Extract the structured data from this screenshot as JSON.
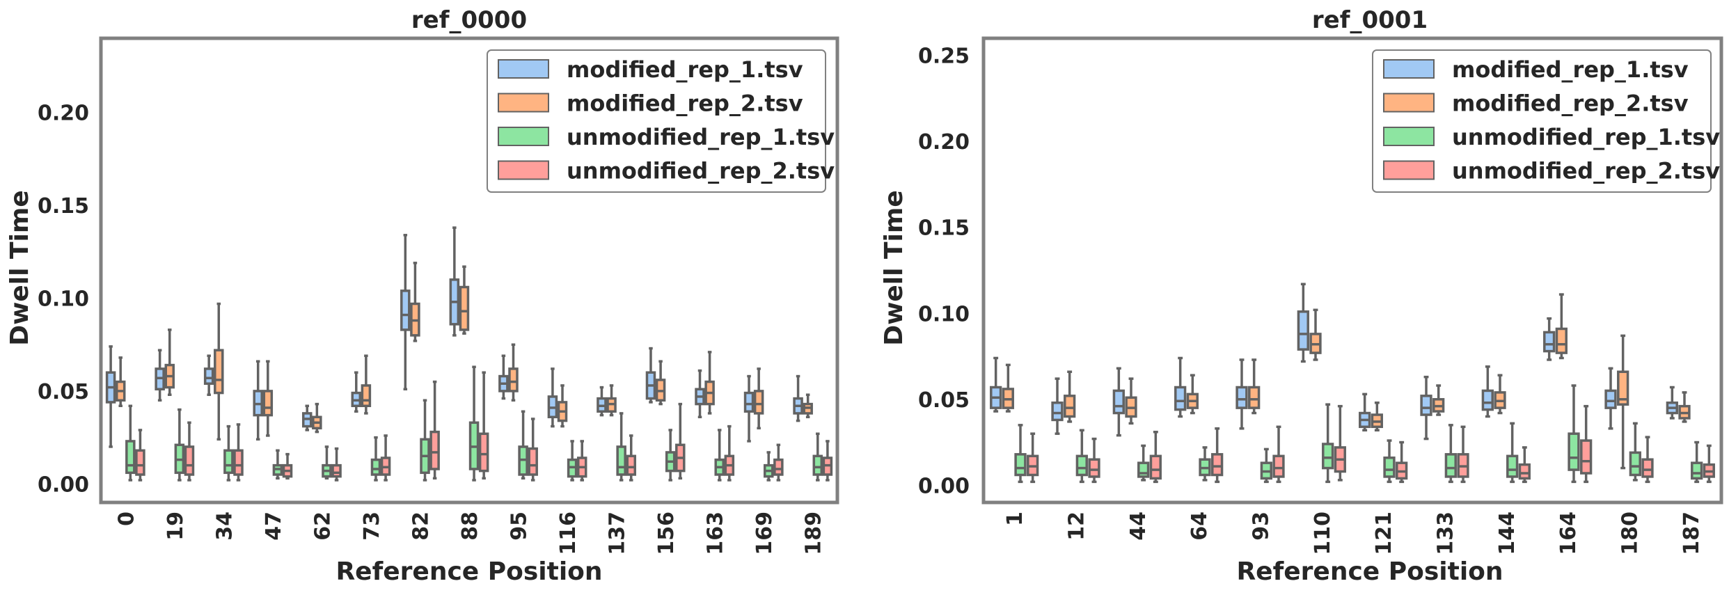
{
  "colors": {
    "modified_rep_1": "#a1c9f4",
    "modified_rep_2": "#ffb482",
    "unmodified_rep_1": "#8de5a1",
    "unmodified_rep_2": "#ff9f9b",
    "box_edge": "#626262",
    "frame": "#808080"
  },
  "chart_data": [
    {
      "type": "box",
      "title": "ref_0000",
      "xlabel": "Reference Position",
      "ylabel": "Dwell Time",
      "ylim": [
        -0.01,
        0.24
      ],
      "yticks": [
        0.0,
        0.05,
        0.1,
        0.15,
        0.2
      ],
      "ytick_labels": [
        "0.00",
        "0.05",
        "0.10",
        "0.15",
        "0.20"
      ],
      "grid": false,
      "legend_position": "top-right",
      "categories": [
        "0",
        "19",
        "34",
        "47",
        "62",
        "73",
        "82",
        "88",
        "95",
        "116",
        "137",
        "156",
        "163",
        "169",
        "189"
      ],
      "series": [
        {
          "name": "modified_rep_1.tsv",
          "color_key": "modified_rep_1",
          "stats": [
            [
              0.02,
              0.044,
              0.052,
              0.06,
              0.074
            ],
            [
              0.045,
              0.051,
              0.057,
              0.062,
              0.072
            ],
            [
              0.048,
              0.054,
              0.057,
              0.062,
              0.069
            ],
            [
              0.024,
              0.037,
              0.043,
              0.05,
              0.066
            ],
            [
              0.029,
              0.031,
              0.035,
              0.038,
              0.042
            ],
            [
              0.039,
              0.042,
              0.045,
              0.049,
              0.06
            ],
            [
              0.051,
              0.083,
              0.091,
              0.104,
              0.134
            ],
            [
              0.08,
              0.086,
              0.098,
              0.11,
              0.138
            ],
            [
              0.046,
              0.05,
              0.054,
              0.058,
              0.069
            ],
            [
              0.031,
              0.036,
              0.041,
              0.047,
              0.062
            ],
            [
              0.037,
              0.039,
              0.042,
              0.046,
              0.052
            ],
            [
              0.044,
              0.046,
              0.053,
              0.06,
              0.073
            ],
            [
              0.036,
              0.043,
              0.047,
              0.051,
              0.061
            ],
            [
              0.023,
              0.039,
              0.043,
              0.049,
              0.058
            ],
            [
              0.034,
              0.038,
              0.042,
              0.046,
              0.058
            ]
          ]
        },
        {
          "name": "modified_rep_2.tsv",
          "color_key": "modified_rep_2",
          "stats": [
            [
              0.042,
              0.045,
              0.05,
              0.055,
              0.068
            ],
            [
              0.048,
              0.052,
              0.058,
              0.064,
              0.083
            ],
            [
              0.024,
              0.049,
              0.056,
              0.072,
              0.097
            ],
            [
              0.026,
              0.037,
              0.041,
              0.05,
              0.066
            ],
            [
              0.028,
              0.03,
              0.033,
              0.036,
              0.043
            ],
            [
              0.038,
              0.042,
              0.045,
              0.053,
              0.069
            ],
            [
              0.077,
              0.08,
              0.088,
              0.097,
              0.119
            ],
            [
              0.081,
              0.083,
              0.093,
              0.106,
              0.117
            ],
            [
              0.045,
              0.05,
              0.055,
              0.062,
              0.075
            ],
            [
              0.031,
              0.034,
              0.039,
              0.044,
              0.053
            ],
            [
              0.037,
              0.039,
              0.043,
              0.046,
              0.053
            ],
            [
              0.043,
              0.045,
              0.05,
              0.056,
              0.066
            ],
            [
              0.038,
              0.043,
              0.049,
              0.055,
              0.071
            ],
            [
              0.03,
              0.038,
              0.043,
              0.05,
              0.062
            ],
            [
              0.036,
              0.038,
              0.041,
              0.043,
              0.048
            ]
          ]
        },
        {
          "name": "unmodified_rep_1.tsv",
          "color_key": "unmodified_rep_1",
          "stats": [
            [
              0.002,
              0.006,
              0.01,
              0.023,
              0.042
            ],
            [
              0.002,
              0.006,
              0.013,
              0.021,
              0.04
            ],
            [
              0.002,
              0.006,
              0.01,
              0.018,
              0.031
            ],
            [
              0.003,
              0.005,
              0.008,
              0.01,
              0.018
            ],
            [
              0.003,
              0.004,
              0.007,
              0.01,
              0.02
            ],
            [
              0.002,
              0.005,
              0.008,
              0.013,
              0.025
            ],
            [
              0.002,
              0.006,
              0.015,
              0.024,
              0.045
            ],
            [
              0.002,
              0.008,
              0.02,
              0.033,
              0.063
            ],
            [
              0.003,
              0.005,
              0.013,
              0.02,
              0.039
            ],
            [
              0.002,
              0.004,
              0.009,
              0.013,
              0.023
            ],
            [
              0.002,
              0.005,
              0.009,
              0.02,
              0.038
            ],
            [
              0.002,
              0.007,
              0.012,
              0.017,
              0.029
            ],
            [
              0.002,
              0.005,
              0.009,
              0.013,
              0.029
            ],
            [
              0.002,
              0.004,
              0.007,
              0.01,
              0.017
            ],
            [
              0.002,
              0.005,
              0.009,
              0.015,
              0.027
            ]
          ]
        },
        {
          "name": "unmodified_rep_2.tsv",
          "color_key": "unmodified_rep_2",
          "stats": [
            [
              0.002,
              0.005,
              0.01,
              0.018,
              0.029
            ],
            [
              0.002,
              0.005,
              0.01,
              0.02,
              0.033
            ],
            [
              0.002,
              0.005,
              0.01,
              0.018,
              0.032
            ],
            [
              0.003,
              0.004,
              0.007,
              0.01,
              0.016
            ],
            [
              0.002,
              0.004,
              0.006,
              0.01,
              0.019
            ],
            [
              0.002,
              0.005,
              0.009,
              0.014,
              0.026
            ],
            [
              0.003,
              0.008,
              0.017,
              0.028,
              0.055
            ],
            [
              0.003,
              0.007,
              0.016,
              0.027,
              0.06
            ],
            [
              0.002,
              0.005,
              0.01,
              0.019,
              0.035
            ],
            [
              0.002,
              0.004,
              0.009,
              0.014,
              0.023
            ],
            [
              0.002,
              0.005,
              0.009,
              0.015,
              0.026
            ],
            [
              0.003,
              0.007,
              0.014,
              0.021,
              0.043
            ],
            [
              0.002,
              0.005,
              0.01,
              0.015,
              0.031
            ],
            [
              0.002,
              0.005,
              0.008,
              0.013,
              0.021
            ],
            [
              0.002,
              0.005,
              0.01,
              0.014,
              0.023
            ]
          ]
        }
      ]
    },
    {
      "type": "box",
      "title": "ref_0001",
      "xlabel": "Reference Position",
      "ylabel": "Dwell Time",
      "ylim": [
        -0.01,
        0.26
      ],
      "yticks": [
        0.0,
        0.05,
        0.1,
        0.15,
        0.2,
        0.25
      ],
      "ytick_labels": [
        "0.00",
        "0.05",
        "0.10",
        "0.15",
        "0.20",
        "0.25"
      ],
      "grid": false,
      "legend_position": "top-right",
      "categories": [
        "1",
        "12",
        "44",
        "64",
        "93",
        "110",
        "121",
        "133",
        "144",
        "164",
        "180",
        "187"
      ],
      "series": [
        {
          "name": "modified_rep_1.tsv",
          "color_key": "modified_rep_1",
          "stats": [
            [
              0.043,
              0.045,
              0.051,
              0.057,
              0.074
            ],
            [
              0.03,
              0.038,
              0.042,
              0.048,
              0.062
            ],
            [
              0.029,
              0.042,
              0.046,
              0.055,
              0.068
            ],
            [
              0.04,
              0.044,
              0.049,
              0.057,
              0.074
            ],
            [
              0.033,
              0.045,
              0.05,
              0.057,
              0.073
            ],
            [
              0.072,
              0.079,
              0.088,
              0.101,
              0.117
            ],
            [
              0.032,
              0.034,
              0.038,
              0.042,
              0.053
            ],
            [
              0.027,
              0.041,
              0.045,
              0.052,
              0.063
            ],
            [
              0.04,
              0.044,
              0.048,
              0.055,
              0.069
            ],
            [
              0.073,
              0.078,
              0.082,
              0.089,
              0.097
            ],
            [
              0.033,
              0.045,
              0.049,
              0.055,
              0.068
            ],
            [
              0.039,
              0.042,
              0.045,
              0.048,
              0.057
            ]
          ]
        },
        {
          "name": "modified_rep_2.tsv",
          "color_key": "modified_rep_2",
          "stats": [
            [
              0.043,
              0.045,
              0.05,
              0.056,
              0.07
            ],
            [
              0.037,
              0.04,
              0.045,
              0.052,
              0.066
            ],
            [
              0.036,
              0.04,
              0.045,
              0.051,
              0.062
            ],
            [
              0.042,
              0.045,
              0.049,
              0.053,
              0.064
            ],
            [
              0.042,
              0.045,
              0.05,
              0.057,
              0.073
            ],
            [
              0.073,
              0.077,
              0.082,
              0.088,
              0.102
            ],
            [
              0.032,
              0.034,
              0.037,
              0.041,
              0.048
            ],
            [
              0.041,
              0.043,
              0.046,
              0.05,
              0.058
            ],
            [
              0.042,
              0.045,
              0.049,
              0.054,
              0.064
            ],
            [
              0.074,
              0.077,
              0.082,
              0.091,
              0.111
            ],
            [
              0.01,
              0.047,
              0.05,
              0.066,
              0.087
            ],
            [
              0.037,
              0.039,
              0.042,
              0.046,
              0.054
            ]
          ]
        },
        {
          "name": "unmodified_rep_1.tsv",
          "color_key": "unmodified_rep_1",
          "stats": [
            [
              0.002,
              0.006,
              0.01,
              0.018,
              0.035
            ],
            [
              0.002,
              0.006,
              0.01,
              0.017,
              0.032
            ],
            [
              0.003,
              0.005,
              0.007,
              0.013,
              0.023
            ],
            [
              0.003,
              0.006,
              0.01,
              0.015,
              0.022
            ],
            [
              0.002,
              0.004,
              0.008,
              0.013,
              0.021
            ],
            [
              0.002,
              0.01,
              0.016,
              0.024,
              0.047
            ],
            [
              0.002,
              0.005,
              0.009,
              0.016,
              0.026
            ],
            [
              0.002,
              0.005,
              0.01,
              0.018,
              0.035
            ],
            [
              0.002,
              0.005,
              0.009,
              0.017,
              0.036
            ],
            [
              0.002,
              0.009,
              0.016,
              0.03,
              0.058
            ],
            [
              0.003,
              0.006,
              0.011,
              0.019,
              0.036
            ],
            [
              0.002,
              0.004,
              0.007,
              0.013,
              0.025
            ]
          ]
        },
        {
          "name": "unmodified_rep_2.tsv",
          "color_key": "unmodified_rep_2",
          "stats": [
            [
              0.002,
              0.006,
              0.011,
              0.017,
              0.03
            ],
            [
              0.002,
              0.005,
              0.009,
              0.015,
              0.027
            ],
            [
              0.002,
              0.004,
              0.009,
              0.017,
              0.031
            ],
            [
              0.002,
              0.006,
              0.011,
              0.018,
              0.033
            ],
            [
              0.002,
              0.005,
              0.01,
              0.017,
              0.034
            ],
            [
              0.003,
              0.008,
              0.015,
              0.022,
              0.046
            ],
            [
              0.002,
              0.004,
              0.008,
              0.013,
              0.025
            ],
            [
              0.002,
              0.005,
              0.011,
              0.018,
              0.034
            ],
            [
              0.002,
              0.004,
              0.007,
              0.012,
              0.022
            ],
            [
              0.002,
              0.007,
              0.014,
              0.026,
              0.046
            ],
            [
              0.002,
              0.005,
              0.009,
              0.015,
              0.028
            ],
            [
              0.002,
              0.005,
              0.008,
              0.012,
              0.023
            ]
          ]
        }
      ]
    }
  ]
}
